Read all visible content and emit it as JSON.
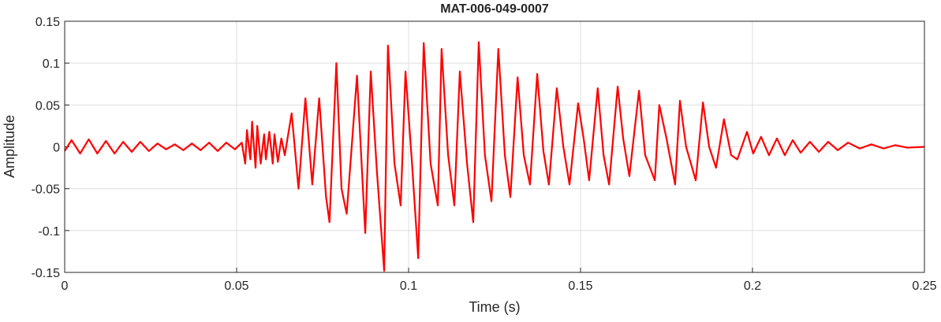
{
  "chart_data": {
    "type": "line",
    "title": "MAT-006-049-0007",
    "xlabel": "Time (s)",
    "ylabel": "Amplitude",
    "xlim": [
      0,
      0.25
    ],
    "xticks": [
      0,
      0.05,
      0.1,
      0.15,
      0.2,
      0.25
    ],
    "ylim": [
      -0.15,
      0.15
    ],
    "yticks": [
      -0.15,
      -0.1,
      -0.05,
      0,
      0.05,
      0.1,
      0.15
    ],
    "grid": true,
    "series": [
      {
        "color": "#ff0000",
        "x": [
          0,
          0.002,
          0.0045,
          0.007,
          0.0095,
          0.012,
          0.0145,
          0.017,
          0.0195,
          0.022,
          0.0245,
          0.027,
          0.0295,
          0.032,
          0.0345,
          0.037,
          0.0395,
          0.042,
          0.0445,
          0.047,
          0.0495,
          0.0515,
          0.0525,
          0.053,
          0.054,
          0.0545,
          0.0555,
          0.056,
          0.057,
          0.058,
          0.0585,
          0.0595,
          0.0605,
          0.061,
          0.062,
          0.063,
          0.064,
          0.066,
          0.068,
          0.07,
          0.072,
          0.074,
          0.076,
          0.077,
          0.079,
          0.0805,
          0.082,
          0.085,
          0.0874,
          0.089,
          0.0908,
          0.0929,
          0.094,
          0.0959,
          0.0977,
          0.0991,
          0.101,
          0.1028,
          0.1044,
          0.1064,
          0.1085,
          0.1096,
          0.1115,
          0.1133,
          0.1149,
          0.117,
          0.1188,
          0.1204,
          0.1222,
          0.1241,
          0.1261,
          0.128,
          0.1296,
          0.1317,
          0.1335,
          0.1353,
          0.1374,
          0.1392,
          0.1408,
          0.1431,
          0.145,
          0.1468,
          0.1493,
          0.1509,
          0.1525,
          0.155,
          0.1567,
          0.1583,
          0.1608,
          0.1624,
          0.1642,
          0.167,
          0.1688,
          0.1716,
          0.1729,
          0.175,
          0.1775,
          0.1789,
          0.1807,
          0.1835,
          0.1856,
          0.1874,
          0.1894,
          0.1917,
          0.1938,
          0.1956,
          0.1984,
          0.2002,
          0.2025,
          0.2048,
          0.2071,
          0.2094,
          0.2117,
          0.214,
          0.2167,
          0.2193,
          0.222,
          0.2248,
          0.2278,
          0.2312,
          0.2346,
          0.2381,
          0.2415,
          0.245,
          0.25
        ],
        "values": [
          -0.005,
          0.008,
          -0.008,
          0.009,
          -0.008,
          0.007,
          -0.008,
          0.006,
          -0.006,
          0.006,
          -0.005,
          0.004,
          -0.003,
          0.003,
          -0.004,
          0.004,
          -0.004,
          0.005,
          -0.005,
          0.005,
          -0.003,
          0.005,
          -0.02,
          0.02,
          -0.015,
          0.03,
          -0.025,
          0.025,
          -0.02,
          0.015,
          -0.015,
          0.018,
          -0.02,
          0.015,
          -0.018,
          0.01,
          -0.01,
          0.04,
          -0.05,
          0.058,
          -0.045,
          0.058,
          -0.06,
          -0.09,
          0.1,
          -0.05,
          -0.08,
          0.085,
          -0.103,
          0.09,
          -0.03,
          -0.148,
          0.121,
          -0.02,
          -0.07,
          0.09,
          -0.02,
          -0.133,
          0.124,
          -0.02,
          -0.07,
          0.117,
          -0.01,
          -0.07,
          0.09,
          -0.02,
          -0.09,
          0.125,
          -0.01,
          -0.065,
          0.117,
          -0.01,
          -0.06,
          0.083,
          -0.01,
          -0.045,
          0.087,
          -0.005,
          -0.045,
          0.07,
          0,
          -0.045,
          0.052,
          0.01,
          -0.04,
          0.07,
          -0.01,
          -0.045,
          0.072,
          0.01,
          -0.035,
          0.067,
          -0.01,
          -0.04,
          0.05,
          0.01,
          -0.045,
          0.055,
          0,
          -0.04,
          0.053,
          0,
          -0.025,
          0.033,
          -0.01,
          -0.015,
          0.018,
          -0.008,
          0.012,
          -0.01,
          0.01,
          -0.01,
          0.008,
          -0.007,
          0.006,
          -0.006,
          0.006,
          -0.004,
          0.005,
          -0.002,
          0.003,
          -0.002,
          0.002,
          -0.001,
          0
        ]
      }
    ]
  }
}
